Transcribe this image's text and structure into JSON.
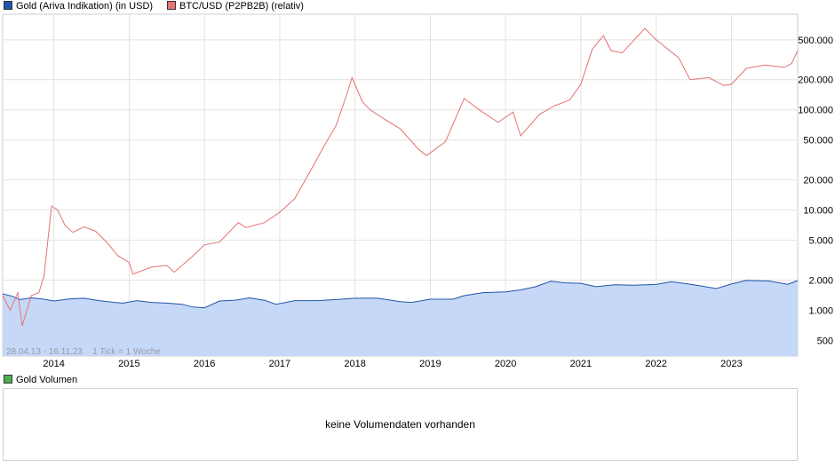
{
  "legend": {
    "gold": {
      "label": "Gold (Ariva Indikation) (in USD)",
      "color": "#2255aa"
    },
    "btc": {
      "label": "BTC/USD (P2PB2B) (relativ)",
      "color": "#e57373"
    }
  },
  "info_text": "28.04.13 - 16.11.23    1 Tick = 1 Woche",
  "volume": {
    "legend_label": "Gold Volumen",
    "legend_color": "#4caf50",
    "message": "keine Volumendaten vorhanden"
  },
  "chart_data": {
    "type": "line",
    "y_scale": "log",
    "ylim": [
      350,
      900000
    ],
    "y_ticks": [
      {
        "value": 500000,
        "label": "500.000"
      },
      {
        "value": 200000,
        "label": "200.000"
      },
      {
        "value": 100000,
        "label": "100.000"
      },
      {
        "value": 50000,
        "label": "50.000"
      },
      {
        "value": 20000,
        "label": "20.000"
      },
      {
        "value": 10000,
        "label": "10.000"
      },
      {
        "value": 5000,
        "label": "5.000"
      },
      {
        "value": 2000,
        "label": "2.000"
      },
      {
        "value": 1000,
        "label": "1.000"
      },
      {
        "value": 500,
        "label": "500"
      }
    ],
    "x_range": [
      2013.32,
      2023.88
    ],
    "x_ticks": [
      {
        "value": 2014,
        "label": "2014"
      },
      {
        "value": 2015,
        "label": "2015"
      },
      {
        "value": 2016,
        "label": "2016"
      },
      {
        "value": 2017,
        "label": "2017"
      },
      {
        "value": 2018,
        "label": "2018"
      },
      {
        "value": 2019,
        "label": "2019"
      },
      {
        "value": 2020,
        "label": "2020"
      },
      {
        "value": 2021,
        "label": "2021"
      },
      {
        "value": 2022,
        "label": "2022"
      },
      {
        "value": 2023,
        "label": "2023"
      }
    ],
    "grid": true,
    "series": [
      {
        "name": "Gold (Ariva Indikation) (in USD)",
        "color": "#2255aa",
        "fill": "#c5d8f7",
        "x": [
          2013.32,
          2013.45,
          2013.55,
          2013.7,
          2013.85,
          2014.0,
          2014.2,
          2014.4,
          2014.6,
          2014.8,
          2014.92,
          2015.1,
          2015.3,
          2015.5,
          2015.7,
          2015.85,
          2016.0,
          2016.2,
          2016.4,
          2016.6,
          2016.8,
          2016.95,
          2017.2,
          2017.5,
          2017.75,
          2018.0,
          2018.3,
          2018.6,
          2018.75,
          2019.0,
          2019.3,
          2019.45,
          2019.7,
          2020.0,
          2020.2,
          2020.4,
          2020.6,
          2020.8,
          2021.0,
          2021.2,
          2021.45,
          2021.7,
          2022.0,
          2022.2,
          2022.5,
          2022.8,
          2023.0,
          2023.2,
          2023.5,
          2023.75,
          2023.88
        ],
        "y": [
          1460,
          1380,
          1280,
          1330,
          1300,
          1240,
          1300,
          1320,
          1250,
          1200,
          1180,
          1250,
          1200,
          1180,
          1150,
          1080,
          1060,
          1240,
          1260,
          1330,
          1260,
          1150,
          1250,
          1250,
          1280,
          1320,
          1320,
          1220,
          1200,
          1290,
          1290,
          1400,
          1500,
          1530,
          1600,
          1720,
          1950,
          1880,
          1860,
          1720,
          1800,
          1780,
          1810,
          1930,
          1800,
          1650,
          1830,
          1990,
          1960,
          1820,
          1980
        ]
      },
      {
        "name": "BTC/USD (P2PB2B) (relativ)",
        "color": "#e57373",
        "x": [
          2013.32,
          2013.42,
          2013.52,
          2013.58,
          2013.7,
          2013.8,
          2013.87,
          2013.92,
          2013.97,
          2014.05,
          2014.15,
          2014.25,
          2014.4,
          2014.55,
          2014.7,
          2014.85,
          2015.0,
          2015.05,
          2015.3,
          2015.5,
          2015.6,
          2015.85,
          2016.0,
          2016.2,
          2016.45,
          2016.55,
          2016.8,
          2017.0,
          2017.2,
          2017.45,
          2017.6,
          2017.75,
          2017.9,
          2017.96,
          2018.1,
          2018.2,
          2018.4,
          2018.6,
          2018.85,
          2018.95,
          2019.2,
          2019.45,
          2019.65,
          2019.9,
          2020.1,
          2020.2,
          2020.45,
          2020.65,
          2020.85,
          2021.0,
          2021.15,
          2021.3,
          2021.4,
          2021.55,
          2021.85,
          2022.0,
          2022.3,
          2022.45,
          2022.7,
          2022.9,
          2023.0,
          2023.2,
          2023.45,
          2023.7,
          2023.8,
          2023.88
        ],
        "y": [
          1400,
          1000,
          1500,
          700,
          1400,
          1500,
          2200,
          5000,
          11000,
          10000,
          7000,
          6000,
          6800,
          6200,
          4800,
          3500,
          3000,
          2300,
          2700,
          2800,
          2400,
          3500,
          4500,
          4800,
          7500,
          6700,
          7500,
          9500,
          13000,
          28000,
          45000,
          70000,
          150000,
          210000,
          120000,
          100000,
          80000,
          65000,
          40000,
          35000,
          48000,
          130000,
          100000,
          75000,
          95000,
          55000,
          90000,
          110000,
          125000,
          180000,
          400000,
          550000,
          390000,
          370000,
          650000,
          500000,
          330000,
          200000,
          210000,
          175000,
          180000,
          260000,
          280000,
          265000,
          290000,
          390000
        ]
      }
    ]
  }
}
